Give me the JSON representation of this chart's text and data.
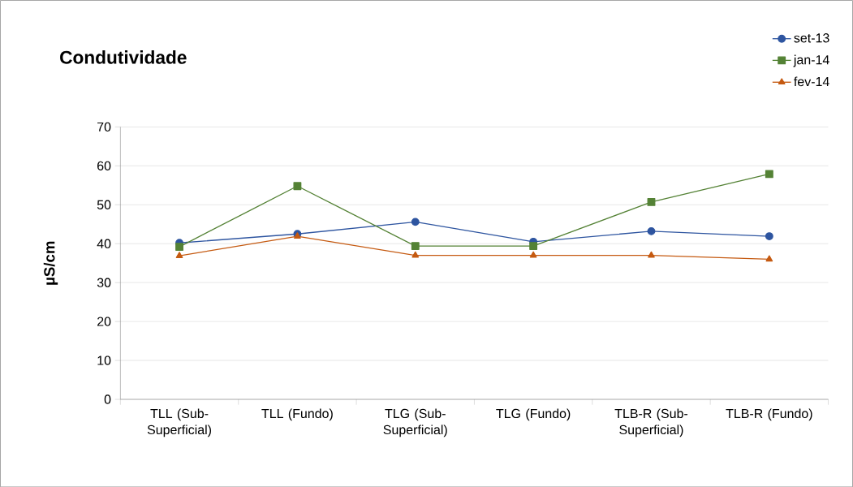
{
  "chart_data": {
    "type": "line",
    "title": "Condutividade",
    "ylabel": "µS/cm",
    "categories": [
      "TLL (Sub-Superficial)",
      "TLL (Fundo)",
      "TLG (Sub-Superficial)",
      "TLG (Fundo)",
      "TLB-R (Sub-Superficial)",
      "TLB-R (Fundo)"
    ],
    "series": [
      {
        "name": "set-13",
        "color": "#2e55a0",
        "marker": "circle",
        "values": [
          40.2,
          42.5,
          45.6,
          40.5,
          43.2,
          41.9
        ]
      },
      {
        "name": "jan-14",
        "color": "#548235",
        "marker": "square",
        "values": [
          39.2,
          54.8,
          39.4,
          39.4,
          50.7,
          57.9
        ]
      },
      {
        "name": "fev-14",
        "color": "#c55a11",
        "marker": "triangle",
        "values": [
          36.9,
          41.9,
          37.0,
          37.0,
          37.0,
          36.0
        ]
      }
    ],
    "ylim": [
      0,
      70
    ],
    "yticks": [
      0,
      10,
      20,
      30,
      40,
      50,
      60,
      70
    ],
    "grid": "y",
    "legend": "top right",
    "line_style": "solid"
  }
}
